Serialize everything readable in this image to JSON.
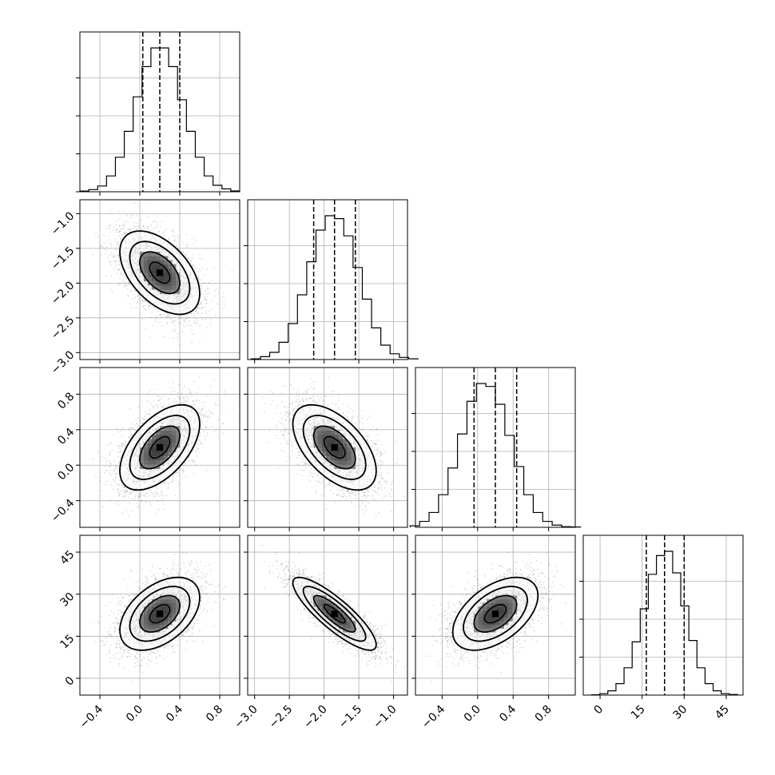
{
  "chart_data": {
    "type": "corner",
    "n_params": 4,
    "grid": true,
    "quantile_lines": "dashed",
    "params": [
      {
        "median": 0.2,
        "q16": 0.03,
        "q84": 0.4,
        "sigma": 0.2,
        "range": [
          -0.6,
          1.0
        ],
        "ticks": [
          -0.4,
          0.0,
          0.4,
          0.8
        ],
        "tick_labels": [
          "−0.4",
          "0.0",
          "0.4",
          "0.8"
        ],
        "hist": [
          0.005,
          0.015,
          0.04,
          0.11,
          0.24,
          0.42,
          0.66,
          0.87,
          1.0,
          1.0,
          0.87,
          0.64,
          0.42,
          0.24,
          0.11,
          0.045,
          0.02,
          0.006
        ]
      },
      {
        "median": -1.85,
        "q16": -2.15,
        "q84": -1.55,
        "sigma": 0.3,
        "range": [
          -3.1,
          -0.8
        ],
        "ticks": [
          -3.0,
          -2.5,
          -2.0,
          -1.5,
          -1.0
        ],
        "tick_labels": [
          "−3.0",
          "−2.5",
          "−2.0",
          "−1.5",
          "−1.0"
        ],
        "hist": [
          0.005,
          0.02,
          0.05,
          0.12,
          0.25,
          0.45,
          0.68,
          0.9,
          1.0,
          0.98,
          0.86,
          0.64,
          0.42,
          0.22,
          0.1,
          0.04,
          0.015,
          0.005
        ]
      },
      {
        "median": 0.2,
        "q16": -0.04,
        "q84": 0.44,
        "sigma": 0.24,
        "range": [
          -0.7,
          1.1
        ],
        "ticks": [
          -0.4,
          0.0,
          0.4,
          0.8
        ],
        "tick_labels": [
          "−0.4",
          "0.0",
          "0.4",
          "0.8"
        ],
        "hist": [
          0.01,
          0.04,
          0.1,
          0.22,
          0.4,
          0.63,
          0.85,
          0.97,
          0.95,
          0.83,
          0.62,
          0.41,
          0.22,
          0.1,
          0.04,
          0.015,
          0.004,
          0.002
        ]
      },
      {
        "median": 23,
        "q16": 16.5,
        "q84": 30,
        "sigma": 6.5,
        "range": [
          -6,
          51
        ],
        "ticks": [
          0,
          15,
          30,
          45
        ],
        "tick_labels": [
          "0",
          "15",
          "30",
          "45"
        ],
        "hist": [
          0.002,
          0.01,
          0.03,
          0.08,
          0.19,
          0.37,
          0.6,
          0.84,
          0.97,
          1.0,
          0.85,
          0.62,
          0.38,
          0.19,
          0.08,
          0.03,
          0.01,
          0.004
        ]
      }
    ],
    "correlations": {
      "1_0": -0.5,
      "2_0": 0.55,
      "2_1": -0.55,
      "3_0": 0.45,
      "3_1": -0.85,
      "3_2": 0.5
    }
  }
}
